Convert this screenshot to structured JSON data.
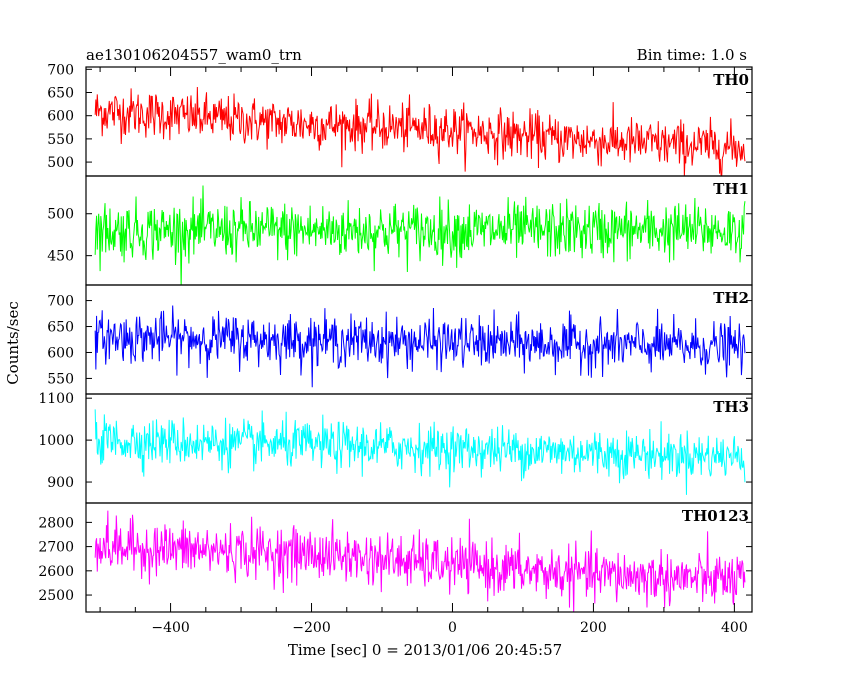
{
  "header": {
    "title": "ae130106204557_wam0_trn",
    "bin_time": "Bin time: 1.0 s"
  },
  "chart_data": {
    "type": "line",
    "title": "ae130106204557_wam0_trn",
    "xlabel": "Time [sec] 0 = 2013/01/06 20:45:57",
    "ylabel": "Counts/sec",
    "xlim": [
      -520,
      425
    ],
    "xticks": [
      -400,
      -200,
      0,
      200,
      400
    ],
    "x_range": [
      -507,
      415
    ],
    "bin_time_s": 1.0,
    "panels": [
      {
        "name": "TH0",
        "color": "#ff0000",
        "ylim": [
          470,
          705
        ],
        "yticks": [
          500,
          550,
          600,
          650,
          700
        ],
        "trend": [
          [
            -507,
            610
          ],
          [
            -440,
            605
          ],
          [
            -250,
            585
          ],
          [
            0,
            570
          ],
          [
            150,
            550
          ],
          [
            415,
            530
          ]
        ],
        "noise": 26
      },
      {
        "name": "TH1",
        "color": "#00ff00",
        "ylim": [
          415,
          545
        ],
        "yticks": [
          450,
          500
        ],
        "trend": [
          [
            -507,
            480
          ],
          [
            415,
            480
          ]
        ],
        "noise": 17
      },
      {
        "name": "TH2",
        "color": "#0000ff",
        "ylim": [
          520,
          730
        ],
        "yticks": [
          550,
          600,
          650,
          700
        ],
        "trend": [
          [
            -507,
            630
          ],
          [
            415,
            610
          ]
        ],
        "noise": 24
      },
      {
        "name": "TH3",
        "color": "#00ffff",
        "ylim": [
          850,
          1110
        ],
        "yticks": [
          900,
          1000,
          1100
        ],
        "trend": [
          [
            -507,
            1000
          ],
          [
            0,
            980
          ],
          [
            415,
            960
          ]
        ],
        "noise": 28
      },
      {
        "name": "TH0123",
        "color": "#ff00ff",
        "ylim": [
          2430,
          2880
        ],
        "yticks": [
          2500,
          2600,
          2700,
          2800
        ],
        "trend": [
          [
            -507,
            2700
          ],
          [
            -200,
            2670
          ],
          [
            150,
            2590
          ],
          [
            415,
            2560
          ]
        ],
        "noise": 55
      }
    ]
  }
}
